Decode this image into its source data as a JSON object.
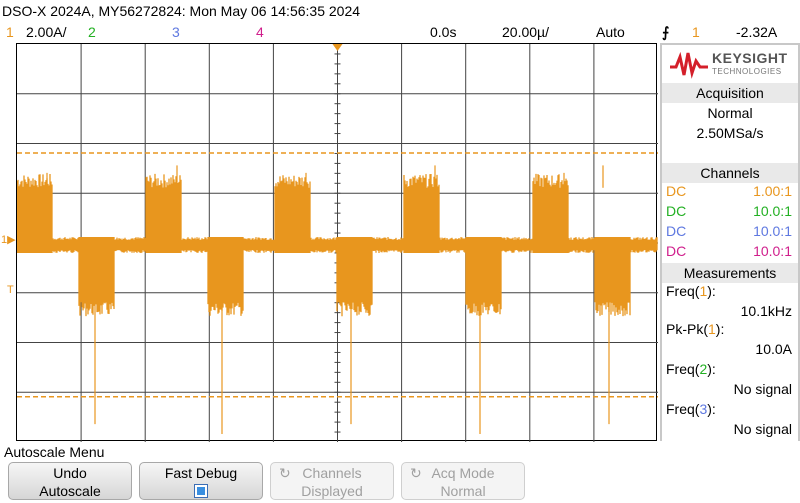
{
  "header": {
    "title": "DSO-X 2024A, MY56272824: Mon May 06 14:56:35 2024"
  },
  "channel_bar": {
    "ch1_num": "1",
    "ch1_scale": "2.00A/",
    "ch2_num": "2",
    "ch3_num": "3",
    "ch4_num": "4",
    "time_delay": "0.0s",
    "time_scale": "20.00µ/",
    "trigger_mode": "Auto",
    "trigger_src": "1",
    "trigger_level": "-2.32A"
  },
  "colors": {
    "ch1": "#e8961e",
    "ch2": "#22b022",
    "ch3": "#5e78e0",
    "ch4": "#d01e8c",
    "keysight_red": "#d41f2a"
  },
  "brand": {
    "line1": "KEYSIGHT",
    "line2": "TECHNOLOGIES"
  },
  "acquisition": {
    "title": "Acquisition",
    "mode": "Normal",
    "rate": "2.50MSa/s"
  },
  "channels": {
    "title": "Channels",
    "rows": [
      {
        "coupling": "DC",
        "probe": "1.00:1"
      },
      {
        "coupling": "DC",
        "probe": "10.0:1"
      },
      {
        "coupling": "DC",
        "probe": "10.0:1"
      },
      {
        "coupling": "DC",
        "probe": "10.0:1"
      }
    ]
  },
  "measurements": {
    "title": "Measurements",
    "m1_label": "Freq(",
    "m1_src": "1",
    "m1_value": "10.1kHz",
    "m2_label": "Pk-Pk(",
    "m2_src": "1",
    "m2_value": "10.0A",
    "m3_label": "Freq(",
    "m3_src": "2",
    "m3_value": "No signal",
    "m4_label": "Freq(",
    "m4_src": "3",
    "m4_value": "No signal"
  },
  "markers": {
    "ch1_ground": "1",
    "trigger": "T"
  },
  "softkeys": {
    "menu_title": "Autoscale Menu",
    "undo_line1": "Undo",
    "undo_line2": "Autoscale",
    "fastdebug": "Fast Debug",
    "channels_line1": "Channels",
    "channels_line2": "Displayed",
    "acqmode_line1": "Acq Mode",
    "acqmode_line2": "Normal"
  },
  "waveform": {
    "description_free": true,
    "high_level_A": 2.3,
    "low_level_A": -2.3,
    "baseline_A": 0,
    "cursor_upper_A": 3.7,
    "cursor_lower_A": -6.1
  }
}
